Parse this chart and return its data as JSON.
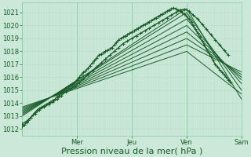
{
  "bg_color": "#cce8d8",
  "grid_minor_color": "#b8dcc8",
  "grid_major_color": "#90c8a8",
  "line_color": "#1a5c2a",
  "line_color2": "#2a7a3a",
  "ylim": [
    1011.5,
    1021.8
  ],
  "xlim": [
    0,
    100
  ],
  "yticks": [
    1012,
    1013,
    1014,
    1015,
    1016,
    1017,
    1018,
    1019,
    1020,
    1021
  ],
  "day_labels": [
    "Mer",
    "Jeu",
    "Ven",
    "Sam"
  ],
  "day_positions": [
    25,
    50,
    75,
    100
  ],
  "xlabel": "Pression niveau de la mer( hPa )",
  "xlabel_fontsize": 8,
  "tick_fontsize": 6,
  "marker_series": [
    {
      "x": [
        0,
        1,
        2,
        3,
        4,
        5,
        6,
        7,
        8,
        9,
        10,
        11,
        12,
        13,
        14,
        15,
        16,
        17,
        18,
        19,
        20,
        21,
        22,
        23,
        24,
        25,
        26,
        27,
        28,
        29,
        30,
        31,
        32,
        33,
        34,
        35,
        36,
        37,
        38,
        39,
        40,
        41,
        42,
        43,
        44,
        45,
        46,
        47,
        48,
        49,
        50,
        51,
        52,
        53,
        54,
        55,
        56,
        57,
        58,
        59,
        60,
        61,
        62,
        63,
        64,
        65,
        66,
        67,
        68,
        69,
        70,
        71,
        72,
        73,
        74,
        75,
        76,
        77,
        78,
        79,
        80,
        81,
        82,
        83,
        84,
        85,
        86,
        87,
        88,
        89,
        90,
        91,
        92,
        93,
        94,
        95
      ],
      "y": [
        1012.2,
        1012.3,
        1012.5,
        1012.7,
        1012.9,
        1013.1,
        1013.3,
        1013.5,
        1013.6,
        1013.7,
        1013.8,
        1013.9,
        1014.0,
        1014.1,
        1014.2,
        1014.3,
        1014.5,
        1014.6,
        1014.8,
        1015.0,
        1015.2,
        1015.3,
        1015.4,
        1015.5,
        1015.6,
        1015.8,
        1016.0,
        1016.2,
        1016.4,
        1016.5,
        1016.7,
        1016.9,
        1017.1,
        1017.3,
        1017.5,
        1017.7,
        1017.8,
        1017.9,
        1018.0,
        1018.1,
        1018.2,
        1018.3,
        1018.5,
        1018.7,
        1018.9,
        1019.0,
        1019.1,
        1019.2,
        1019.3,
        1019.4,
        1019.5,
        1019.6,
        1019.7,
        1019.8,
        1019.9,
        1020.0,
        1020.1,
        1020.2,
        1020.3,
        1020.4,
        1020.5,
        1020.6,
        1020.7,
        1020.8,
        1020.9,
        1021.0,
        1021.1,
        1021.2,
        1021.3,
        1021.35,
        1021.3,
        1021.2,
        1021.1,
        1021.0,
        1020.9,
        1020.7,
        1020.5,
        1020.3,
        1020.0,
        1019.7,
        1019.4,
        1019.1,
        1018.8,
        1018.5,
        1018.2,
        1017.9,
        1017.6,
        1017.3,
        1017.0,
        1016.8,
        1016.6,
        1016.4,
        1016.2,
        1016.0,
        1015.8,
        1015.6
      ],
      "color": "#1a5c2a",
      "lw": 1.0
    },
    {
      "x": [
        0,
        2,
        4,
        6,
        8,
        10,
        12,
        14,
        16,
        18,
        20,
        22,
        24,
        26,
        28,
        30,
        32,
        34,
        36,
        38,
        40,
        42,
        44,
        46,
        48,
        50,
        52,
        54,
        56,
        58,
        60,
        62,
        64,
        66,
        68,
        70,
        72,
        74,
        76,
        78,
        80,
        82,
        84,
        86,
        88,
        90,
        92,
        94
      ],
      "y": [
        1012.4,
        1012.6,
        1012.9,
        1013.2,
        1013.5,
        1013.7,
        1013.9,
        1014.1,
        1014.3,
        1014.6,
        1014.9,
        1015.1,
        1015.3,
        1015.6,
        1015.9,
        1016.2,
        1016.5,
        1016.8,
        1017.1,
        1017.4,
        1017.7,
        1018.0,
        1018.3,
        1018.6,
        1018.8,
        1019.0,
        1019.2,
        1019.4,
        1019.6,
        1019.8,
        1020.0,
        1020.2,
        1020.4,
        1020.6,
        1020.8,
        1021.0,
        1021.2,
        1021.25,
        1021.1,
        1020.8,
        1020.5,
        1020.1,
        1019.7,
        1019.3,
        1018.9,
        1018.5,
        1018.1,
        1017.7
      ],
      "color": "#1a5c2a",
      "lw": 1.0
    }
  ],
  "fan_lines": [
    {
      "x0": 0,
      "y0": 1013.0,
      "x1": 75,
      "y1": 1021.3,
      "x2": 100,
      "y2": 1014.3
    },
    {
      "x0": 0,
      "y0": 1013.1,
      "x1": 75,
      "y1": 1021.0,
      "x2": 100,
      "y2": 1015.0
    },
    {
      "x0": 0,
      "y0": 1013.2,
      "x1": 75,
      "y1": 1020.5,
      "x2": 100,
      "y2": 1015.5
    },
    {
      "x0": 0,
      "y0": 1013.3,
      "x1": 75,
      "y1": 1020.0,
      "x2": 100,
      "y2": 1015.8
    },
    {
      "x0": 0,
      "y0": 1013.4,
      "x1": 75,
      "y1": 1019.5,
      "x2": 100,
      "y2": 1016.0
    },
    {
      "x0": 0,
      "y0": 1013.5,
      "x1": 75,
      "y1": 1019.0,
      "x2": 100,
      "y2": 1016.2
    },
    {
      "x0": 0,
      "y0": 1013.6,
      "x1": 75,
      "y1": 1018.5,
      "x2": 100,
      "y2": 1016.4
    },
    {
      "x0": 0,
      "y0": 1013.7,
      "x1": 75,
      "y1": 1018.0,
      "x2": 100,
      "y2": 1014.7
    }
  ],
  "fan_color": "#1a5c2a",
  "fan_lw": 0.7
}
